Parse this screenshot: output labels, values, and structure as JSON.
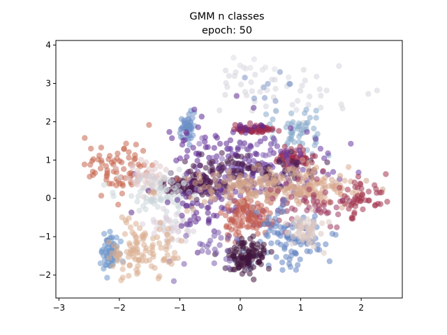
{
  "chart_data": {
    "type": "scatter",
    "title": "GMM n classes",
    "subtitle": "epoch: 50",
    "xlabel": "",
    "ylabel": "",
    "xlim": [
      -3.05,
      2.68
    ],
    "ylim": [
      -2.6,
      4.12
    ],
    "xticks": [
      -3,
      -2,
      -1,
      0,
      1,
      2
    ],
    "xtick_labels": [
      "−3",
      "−2",
      "−1",
      "0",
      "1",
      "2"
    ],
    "yticks": [
      -2,
      -1,
      0,
      1,
      2,
      3,
      4
    ],
    "ytick_labels": [
      "−2",
      "−1",
      "0",
      "1",
      "2",
      "3",
      "4"
    ],
    "grid": false,
    "legend": "none",
    "marker_alpha": 0.55,
    "seed": 7,
    "clusters": [
      {
        "color": "#d6d4dc",
        "center": [
          0.6,
          2.75
        ],
        "spread": [
          0.55,
          0.38
        ],
        "n": 45
      },
      {
        "color": "#dcdde3",
        "center": [
          0.2,
          3.5
        ],
        "spread": [
          0.35,
          0.22
        ],
        "n": 10
      },
      {
        "color": "#6d8fc7",
        "center": [
          -0.85,
          1.9
        ],
        "spread": [
          0.07,
          0.16
        ],
        "n": 45
      },
      {
        "color": "#89abcc",
        "center": [
          1.0,
          1.75
        ],
        "spread": [
          0.22,
          0.38
        ],
        "n": 55
      },
      {
        "color": "#7d93c4",
        "center": [
          0.55,
          2.85
        ],
        "spread": [
          0.22,
          0.22
        ],
        "n": 8
      },
      {
        "color": "#9d2a4b",
        "center": [
          0.2,
          1.8
        ],
        "spread": [
          0.17,
          0.05
        ],
        "n": 60
      },
      {
        "color": "#9e2e4c",
        "center": [
          0.9,
          1.05
        ],
        "spread": [
          0.15,
          0.12
        ],
        "n": 60
      },
      {
        "color": "#5d2a93",
        "center": [
          -0.25,
          1.3
        ],
        "spread": [
          0.42,
          0.5
        ],
        "n": 80
      },
      {
        "color": "#6a3aa0",
        "center": [
          0.5,
          0.7
        ],
        "spread": [
          0.55,
          0.45
        ],
        "n": 90
      },
      {
        "color": "#8a6cb8",
        "center": [
          -0.05,
          1.0
        ],
        "spread": [
          0.35,
          0.35
        ],
        "n": 30
      },
      {
        "color": "#4a1a4a",
        "center": [
          -0.75,
          0.35
        ],
        "spread": [
          0.28,
          0.12
        ],
        "n": 110
      },
      {
        "color": "#4a1d4a",
        "center": [
          0.15,
          0.8
        ],
        "spread": [
          0.6,
          0.18
        ],
        "n": 90
      },
      {
        "color": "#c6664f",
        "center": [
          -2.05,
          0.8
        ],
        "spread": [
          0.3,
          0.33
        ],
        "n": 75
      },
      {
        "color": "#e0c8ca",
        "center": [
          -1.55,
          0.55
        ],
        "spread": [
          0.16,
          0.18
        ],
        "n": 55
      },
      {
        "color": "#ccd5db",
        "center": [
          -1.2,
          0.05
        ],
        "spread": [
          0.35,
          0.35
        ],
        "n": 75
      },
      {
        "color": "#ddd2dc",
        "center": [
          -1.1,
          -0.7
        ],
        "spread": [
          0.18,
          0.18
        ],
        "n": 40
      },
      {
        "color": "#5c2a8e",
        "center": [
          -0.4,
          -0.1
        ],
        "spread": [
          0.45,
          0.45
        ],
        "n": 80
      },
      {
        "color": "#c35f52",
        "center": [
          0.1,
          -0.45
        ],
        "spread": [
          0.2,
          0.25
        ],
        "n": 110
      },
      {
        "color": "#d2a48a",
        "center": [
          0.5,
          0.3
        ],
        "spread": [
          0.65,
          0.22
        ],
        "n": 200
      },
      {
        "color": "#dba98e",
        "center": [
          1.35,
          0.3
        ],
        "spread": [
          0.3,
          0.25
        ],
        "n": 60
      },
      {
        "color": "#a3344f",
        "center": [
          1.95,
          0.05
        ],
        "spread": [
          0.27,
          0.25
        ],
        "n": 55
      },
      {
        "color": "#9c3a62",
        "center": [
          1.0,
          -0.2
        ],
        "spread": [
          0.4,
          0.3
        ],
        "n": 45
      },
      {
        "color": "#6485c2",
        "center": [
          0.8,
          -1.0
        ],
        "spread": [
          0.3,
          0.45
        ],
        "n": 100
      },
      {
        "color": "#dcc8c2",
        "center": [
          1.1,
          -0.85
        ],
        "spread": [
          0.15,
          0.18
        ],
        "n": 60
      },
      {
        "color": "#3f143d",
        "center": [
          0.1,
          -1.55
        ],
        "spread": [
          0.17,
          0.22
        ],
        "n": 110
      },
      {
        "color": "#7b5fad",
        "center": [
          -0.5,
          -1.2
        ],
        "spread": [
          0.35,
          0.3
        ],
        "n": 25
      },
      {
        "color": "#6f97cb",
        "center": [
          -2.15,
          -1.35
        ],
        "spread": [
          0.08,
          0.25
        ],
        "n": 70
      },
      {
        "color": "#dbaf92",
        "center": [
          -1.6,
          -1.35
        ],
        "spread": [
          0.28,
          0.38
        ],
        "n": 110
      }
    ]
  }
}
